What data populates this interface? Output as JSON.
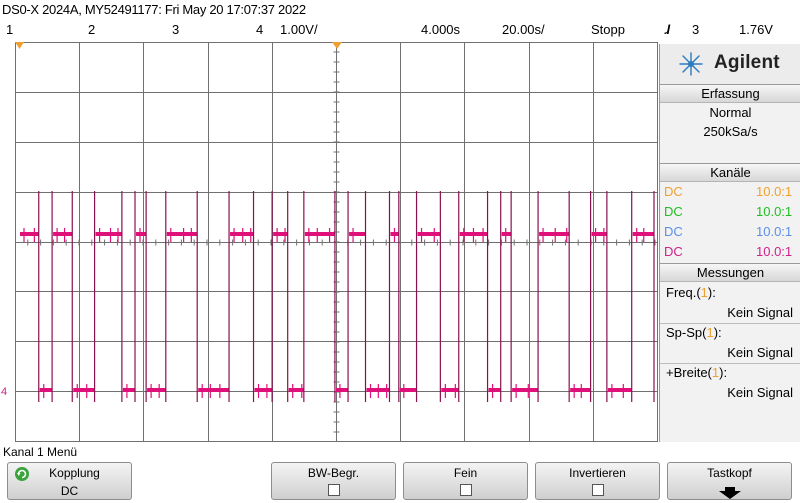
{
  "title": "DS0-X 2024A, MY52491177: Fri May 20 17:07:37 2022",
  "channels_row": {
    "ch1": "1",
    "ch2": "2",
    "ch3": "3",
    "ch4": "4",
    "ch4_scale": "1.00V/",
    "time_ref": "4.000s",
    "time_scale": "20.00s/",
    "run_state": "Stopp",
    "trigger_symbol": "ɺ",
    "trigger_source": "3",
    "trigger_level": "1.76V"
  },
  "colors": {
    "ch1": "#f0a030",
    "ch2": "#1fbf1f",
    "ch3": "#5b8ee8",
    "ch4": "#d0208a",
    "trace": "#e0107a",
    "grid": "#707070"
  },
  "panel": {
    "brand": "Agilent",
    "logo_icon": "agilent-spark-icon",
    "acquisition": {
      "header": "Erfassung",
      "mode": "Normal",
      "rate": "250kSa/s"
    },
    "channels": {
      "header": "Kanäle",
      "rows": [
        {
          "coupling": "DC",
          "probe": "10.0:1"
        },
        {
          "coupling": "DC",
          "probe": "10.0:1"
        },
        {
          "coupling": "DC",
          "probe": "10.0:1"
        },
        {
          "coupling": "DC",
          "probe": "10.0:1"
        }
      ]
    },
    "measurements": {
      "header": "Messungen",
      "items": [
        {
          "label_prefix": "Freq.(",
          "ch": "1",
          "label_suffix": "):",
          "value": "Kein Signal"
        },
        {
          "label_prefix": "Sp-Sp(",
          "ch": "1",
          "label_suffix": "):",
          "value": "Kein Signal"
        },
        {
          "label_prefix": "+Breite(",
          "ch": "1",
          "label_suffix": "):",
          "value": "Kein Signal"
        }
      ]
    }
  },
  "ch4_marker": "4",
  "menu": {
    "title": "Kanal 1 Menü",
    "softkeys": [
      {
        "label": "Kopplung",
        "value": "DC"
      },
      {
        "label": "BW-Begr."
      },
      {
        "label": "Fein"
      },
      {
        "label": "Invertieren"
      },
      {
        "label": "Tastkopf"
      }
    ]
  }
}
